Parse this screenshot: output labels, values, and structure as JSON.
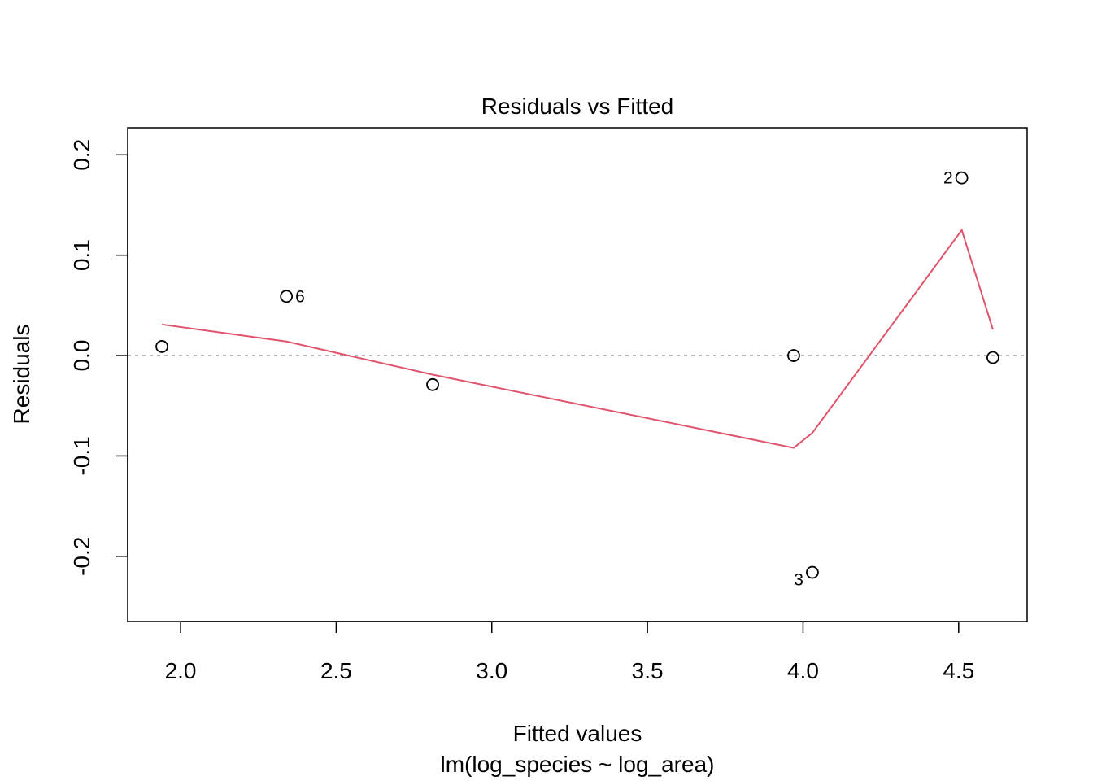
{
  "chart_data": {
    "type": "scatter",
    "title": "Residuals vs Fitted",
    "xlabel": "Fitted values",
    "subtitle": "lm(log_species ~ log_area)",
    "ylabel": "Residuals",
    "xlim": [
      1.83,
      4.72
    ],
    "ylim": [
      -0.265,
      0.227
    ],
    "x_ticks": [
      2.0,
      2.5,
      3.0,
      3.5,
      4.0,
      4.5
    ],
    "x_tick_labels": [
      "2.0",
      "2.5",
      "3.0",
      "3.5",
      "4.0",
      "4.5"
    ],
    "y_ticks": [
      -0.2,
      -0.1,
      0.0,
      0.1,
      0.2
    ],
    "y_tick_labels": [
      "-0.2",
      "-0.1",
      "0.0",
      "0.1",
      "0.2"
    ],
    "points": [
      {
        "x": 1.94,
        "y": 0.009,
        "label": ""
      },
      {
        "x": 2.34,
        "y": 0.059,
        "label": "6"
      },
      {
        "x": 2.81,
        "y": -0.029,
        "label": ""
      },
      {
        "x": 3.97,
        "y": 0.0,
        "label": ""
      },
      {
        "x": 4.03,
        "y": -0.216,
        "label": "3"
      },
      {
        "x": 4.51,
        "y": 0.177,
        "label": "2"
      },
      {
        "x": 4.61,
        "y": -0.002,
        "label": ""
      }
    ],
    "smooth_line": [
      {
        "x": 1.94,
        "y": 0.031
      },
      {
        "x": 2.34,
        "y": 0.014
      },
      {
        "x": 2.81,
        "y": -0.019
      },
      {
        "x": 3.97,
        "y": -0.092
      },
      {
        "x": 4.03,
        "y": -0.077
      },
      {
        "x": 4.51,
        "y": 0.125
      },
      {
        "x": 4.61,
        "y": 0.026
      }
    ],
    "reference_line_y": 0,
    "colors": {
      "points": "#000000",
      "smooth": "#DF536B",
      "reference": "#9E9E9E",
      "axes": "#000000"
    },
    "grid": false,
    "legend": "none"
  }
}
